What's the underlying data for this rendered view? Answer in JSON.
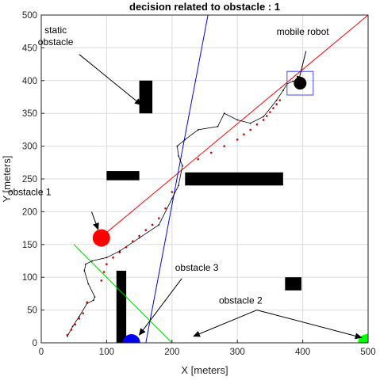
{
  "chart_data": {
    "type": "scatter",
    "title": "decision related to obstacle  : 1",
    "xlabel": "X [meters]",
    "ylabel": "Y [meters]",
    "xlim": [
      0,
      500
    ],
    "ylim": [
      0,
      500
    ],
    "xticks": [
      "0",
      "100",
      "200",
      "300",
      "400",
      "500"
    ],
    "yticks": [
      "0",
      "50",
      "100",
      "150",
      "200",
      "250",
      "300",
      "350",
      "400",
      "450",
      "500"
    ],
    "grid": true,
    "colors": {
      "red_line": "#ff0000",
      "blue_line": "#0000ff",
      "green_line": "#00cc00",
      "robot": "#000000",
      "obstacle_1": "#ff0000",
      "obstacle_2": "#00ff00",
      "obstacle_3": "#0000ff",
      "static_obstacle": "#000000",
      "waypoints": "#cc0000",
      "box": "#4444ff"
    },
    "static_obstacles": [
      {
        "x": [
          150,
          170
        ],
        "y": [
          350,
          400
        ]
      },
      {
        "x": [
          100,
          150
        ],
        "y": [
          248,
          262
        ]
      },
      {
        "x": [
          220,
          370
        ],
        "y": [
          240,
          260
        ]
      },
      {
        "x": [
          115,
          130
        ],
        "y": [
          0,
          110
        ]
      },
      {
        "x": [
          373,
          398
        ],
        "y": [
          80,
          100
        ]
      }
    ],
    "red_line": {
      "x": [
        90,
        500
      ],
      "y": [
        160,
        500
      ]
    },
    "blue_line": {
      "x": [
        160,
        255
      ],
      "y": [
        0,
        500
      ]
    },
    "green_line": [
      {
        "x": [
          50,
          200
        ],
        "y": [
          150,
          0
        ]
      },
      {
        "x": [
          200,
          500
        ],
        "y": [
          0,
          0
        ]
      }
    ],
    "path": {
      "x": [
        40,
        48,
        58,
        70,
        80,
        82,
        72,
        66,
        68,
        78,
        100,
        120,
        150,
        180,
        200,
        210,
        216,
        210,
        208,
        220,
        240,
        270,
        280,
        300,
        320,
        340,
        360,
        370,
        376,
        385,
        390
      ],
      "y": [
        10,
        25,
        40,
        60,
        65,
        70,
        90,
        110,
        120,
        125,
        130,
        140,
        160,
        180,
        220,
        240,
        270,
        285,
        300,
        310,
        325,
        330,
        350,
        340,
        335,
        345,
        370,
        385,
        395,
        399,
        400
      ]
    },
    "red_dots": {
      "x": [
        40,
        46,
        52,
        58,
        64,
        70,
        92,
        96,
        100,
        110,
        120,
        130,
        140,
        150,
        160,
        170,
        180,
        190,
        200,
        240,
        260,
        280,
        300,
        310,
        320,
        330,
        340,
        345,
        350,
        355,
        360,
        365
      ],
      "y": [
        12,
        20,
        28,
        37,
        45,
        62,
        95,
        108,
        120,
        130,
        138,
        146,
        155,
        163,
        172,
        180,
        190,
        205,
        230,
        280,
        290,
        300,
        310,
        318,
        325,
        333,
        340,
        346,
        352,
        358,
        364,
        370
      ]
    },
    "circles": [
      {
        "name": "obstacle_1",
        "x": 92,
        "y": 160
      },
      {
        "name": "obstacle_3",
        "x": 138,
        "y": 0
      },
      {
        "name": "obstacle_2",
        "x": 498,
        "y": 0
      },
      {
        "name": "robot",
        "x": 396,
        "y": 396
      }
    ],
    "robot_box": {
      "x": [
        376,
        416
      ],
      "y": [
        378,
        414
      ]
    },
    "annotations": [
      {
        "id": "static",
        "lines": [
          "static",
          "obstacle"
        ],
        "text_xy": [
          22,
          472
        ],
        "arrow_from": [
          58,
          440
        ],
        "arrow_to": [
          153,
          363
        ]
      },
      {
        "id": "robot",
        "lines": [
          "mobile robot"
        ],
        "text_xy": [
          400,
          470
        ],
        "arrow_from": [
          405,
          445
        ],
        "arrow_to": [
          393,
          397
        ]
      },
      {
        "id": "obs1",
        "lines": [
          "obstacle 1"
        ],
        "text_xy": [
          -18,
          225
        ],
        "arrow_from": [
          77,
          200
        ],
        "arrow_to": [
          87,
          173
        ]
      },
      {
        "id": "obs3",
        "lines": [
          "obstacle 3"
        ],
        "text_xy": [
          238,
          110
        ],
        "arrow_from": [
          215,
          98
        ],
        "arrow_to": [
          150,
          12
        ]
      },
      {
        "id": "obs2",
        "lines": [
          "obstacle 2"
        ],
        "text_xy": [
          305,
          60
        ],
        "arrow_from": [
          330,
          50
        ],
        "arrow_to": [
          233,
          10
        ],
        "arrow2_from": [
          330,
          50
        ],
        "arrow2_to": [
          490,
          8
        ]
      }
    ]
  }
}
